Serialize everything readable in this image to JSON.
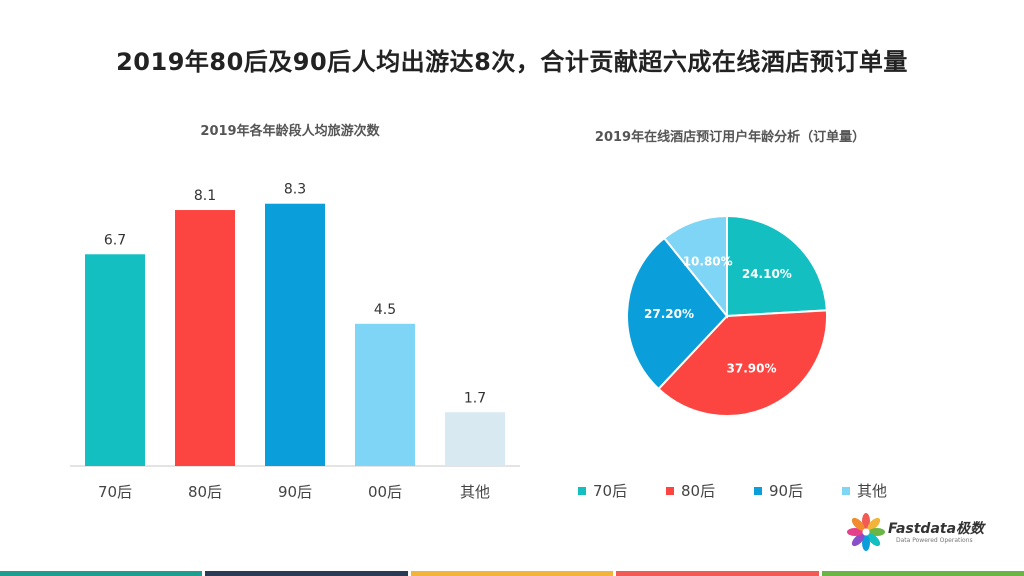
{
  "page": {
    "title": "2019年80后及90后人均出游达8次，合计贡献超六成在线酒店预订单量"
  },
  "chart_data": [
    {
      "type": "bar",
      "title": "2019年各年龄段人均旅游次数",
      "categories": [
        "70后",
        "80后",
        "90后",
        "00后",
        "其他"
      ],
      "values": [
        6.7,
        8.1,
        8.3,
        4.5,
        1.7
      ],
      "value_labels": [
        "6.7",
        "8.1",
        "8.3",
        "4.5",
        "1.7"
      ],
      "colors": [
        "#13BFC1",
        "#FC4441",
        "#0A9FDB",
        "#7ED5F5",
        "#D8E9F2"
      ],
      "ylim": [
        0,
        10
      ],
      "grid": false,
      "xlabel": "",
      "ylabel": ""
    },
    {
      "type": "pie",
      "title": "2019年在线酒店预订用户年龄分析（订单量）",
      "labels": [
        "70后",
        "80后",
        "90后",
        "其他"
      ],
      "values": [
        24.1,
        37.9,
        27.2,
        10.8
      ],
      "value_labels": [
        "24.10%",
        "37.90%",
        "27.20%",
        "10.80%"
      ],
      "colors": [
        "#13BFC1",
        "#FC4441",
        "#0A9FDB",
        "#7ED5F5"
      ],
      "legend_position": "bottom"
    }
  ],
  "logo": {
    "name": "Fastdata极数",
    "tagline": "Data Powered Operations"
  },
  "footer_colors": [
    "#1E9E8F",
    "#2B3A55",
    "#F2B53A",
    "#F25A53",
    "#6BB545"
  ]
}
